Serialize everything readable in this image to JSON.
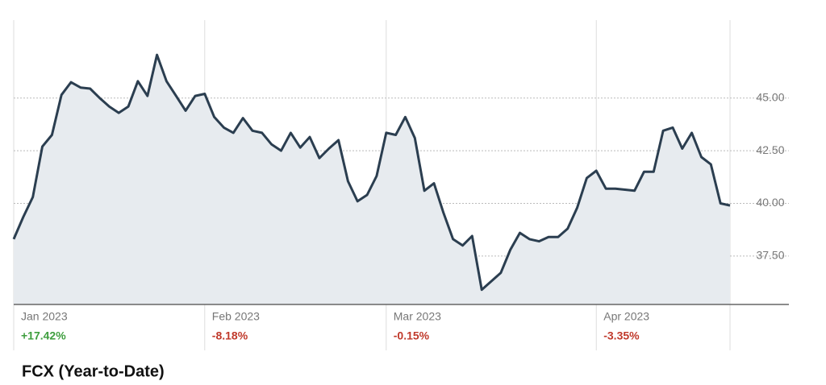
{
  "chart_data": {
    "type": "area",
    "title": "FCX (Year-to-Date)",
    "categories": [
      "Jan 2023",
      null,
      null,
      null,
      null,
      null,
      null,
      null,
      null,
      null,
      null,
      null,
      null,
      null,
      null,
      null,
      null,
      null,
      null,
      null,
      "Feb 2023",
      null,
      null,
      null,
      null,
      null,
      null,
      null,
      null,
      null,
      null,
      null,
      null,
      null,
      null,
      null,
      null,
      null,
      null,
      "Mar 2023",
      null,
      null,
      null,
      null,
      null,
      null,
      null,
      null,
      null,
      null,
      null,
      null,
      null,
      null,
      null,
      null,
      null,
      null,
      null,
      null,
      null,
      "Apr 2023",
      null,
      null,
      null,
      null,
      null,
      null,
      null,
      null,
      null,
      null,
      null,
      null,
      null,
      null
    ],
    "series": [
      {
        "name": "FCX",
        "color": "#2b3e50",
        "fill": "#e7ebef",
        "values": [
          38.3,
          39.35,
          40.3,
          42.7,
          43.25,
          45.15,
          45.75,
          45.5,
          45.45,
          45.0,
          44.6,
          44.3,
          44.6,
          45.8,
          45.1,
          47.05,
          45.8,
          45.1,
          44.4,
          45.1,
          45.2,
          44.1,
          43.6,
          43.35,
          44.05,
          43.45,
          43.35,
          42.8,
          42.5,
          43.35,
          42.65,
          43.15,
          42.15,
          42.6,
          43.0,
          41.05,
          40.1,
          40.4,
          41.3,
          43.35,
          43.25,
          44.1,
          43.1,
          40.6,
          40.95,
          39.55,
          38.3,
          38.0,
          38.45,
          35.9,
          36.3,
          36.7,
          37.8,
          38.6,
          38.3,
          38.2,
          38.4,
          38.4,
          38.8,
          39.8,
          41.2,
          41.55,
          40.7,
          40.7,
          40.65,
          40.6,
          41.5,
          41.5,
          43.45,
          43.6,
          42.6,
          43.35,
          42.2,
          41.85,
          40.0,
          39.9
        ]
      }
    ],
    "month_changes": [
      {
        "label": "+17.42%",
        "color": "#3e9e3e"
      },
      {
        "label": "-8.18%",
        "color": "#c0392b"
      },
      {
        "label": "-0.15%",
        "color": "#c0392b"
      },
      {
        "label": "-3.35%",
        "color": "#c0392b"
      }
    ],
    "ylim": [
      35.2,
      48.7
    ],
    "yticks": [
      {
        "value": 37.5,
        "label": "37.50"
      },
      {
        "value": 40,
        "label": "40.00"
      },
      {
        "value": 42.5,
        "label": "42.50"
      },
      {
        "value": 45,
        "label": "45.00"
      }
    ],
    "y_axis_side": "right",
    "grid": true
  }
}
